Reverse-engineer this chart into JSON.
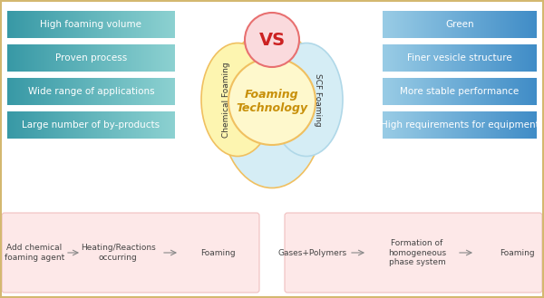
{
  "left_boxes": [
    "High foaming volume",
    "Proven process",
    "Wide range of applications",
    "Large number of by-products"
  ],
  "right_boxes": [
    "Green",
    "Finer vesicle structure",
    "More stable performance",
    "High requirements for equipment"
  ],
  "center_text": "Foaming\nTechnology",
  "vs_text": "VS",
  "left_label": "Chemical Foaming",
  "right_label": "SCF Foaming",
  "left_flow": [
    "Add chemical\nfoaming agent",
    "Heating/Reactions\noccurring",
    "Foaming"
  ],
  "right_flow": [
    "Gases+Polymers",
    "Formation of\nhomogeneous\nphase system",
    "Foaming"
  ],
  "vs_text_color": "#cc2222",
  "flow_bg": "#fde8e8",
  "flow_border": "#f0c0c0",
  "bg_color": "#ffffff",
  "flow_text_color": "#444444",
  "arrow_color": "#888888",
  "border_color": "#d4b870",
  "center_text_color": "#c8900a",
  "left_box_colors": [
    "#57b5be",
    "#85cdd2"
  ],
  "right_box_colors": [
    "#85b8d5",
    "#5a9dc8"
  ],
  "box_text_color": "#ffffff",
  "label_color": "#333333",
  "petal_yellow": "#fdf5b0",
  "petal_yellow_edge": "#f0c060",
  "petal_blue": "#d5edf5",
  "petal_blue_edge": "#b0d8e8",
  "vs_circle_fill": "#fadadd",
  "vs_circle_edge": "#e87070",
  "center_circle_fill": "#fef8cc",
  "center_circle_edge": "#f0c060"
}
